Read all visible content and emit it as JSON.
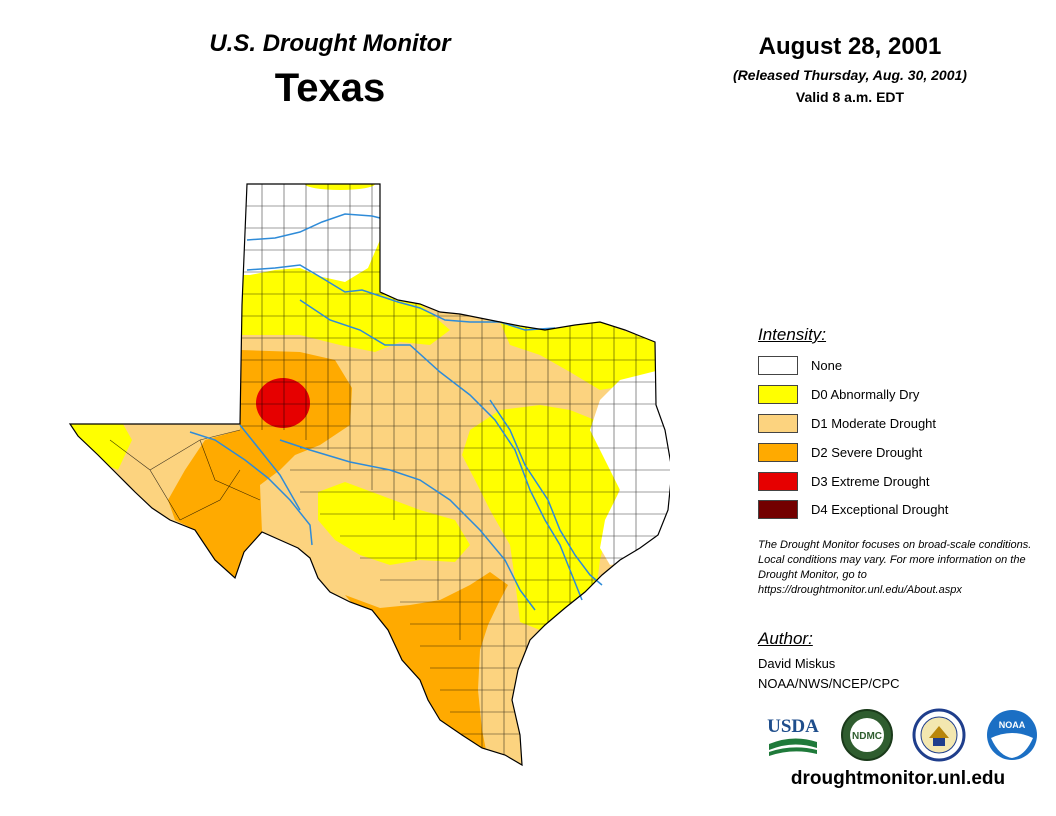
{
  "header": {
    "title": "U.S. Drought Monitor",
    "state": "Texas",
    "date": "August 28, 2001",
    "released": "(Released Thursday, Aug. 30, 2001)",
    "valid": "Valid 8 a.m. EDT"
  },
  "legend": {
    "title": "Intensity:",
    "items": [
      {
        "label": "None",
        "color": "#ffffff"
      },
      {
        "label": "D0 Abnormally Dry",
        "color": "#ffff00"
      },
      {
        "label": "D1 Moderate Drought",
        "color": "#fcd37f"
      },
      {
        "label": "D2 Severe Drought",
        "color": "#ffaa00"
      },
      {
        "label": "D3 Extreme Drought",
        "color": "#e60000"
      },
      {
        "label": "D4 Exceptional Drought",
        "color": "#730000"
      }
    ]
  },
  "note": "The Drought Monitor focuses on broad-scale conditions. Local conditions may vary. For more information on the Drought Monitor, go to https://droughtmonitor.unl.edu/About.aspx",
  "author": {
    "title": "Author:",
    "name": "David Miskus",
    "org": "NOAA/NWS/NCEP/CPC"
  },
  "logos": [
    {
      "name": "usda-logo",
      "text": "USDA"
    },
    {
      "name": "ndmc-logo",
      "text": "NDMC"
    },
    {
      "name": "doc-logo",
      "text": ""
    },
    {
      "name": "noaa-logo",
      "text": "NOAA"
    }
  ],
  "footer_url": "droughtmonitor.unl.edu",
  "colors": {
    "none": "#ffffff",
    "d0": "#ffff00",
    "d1": "#fcd37f",
    "d2": "#ffaa00",
    "d3": "#e60000",
    "d4": "#730000",
    "river": "#2e8bd8",
    "border": "#000000"
  }
}
